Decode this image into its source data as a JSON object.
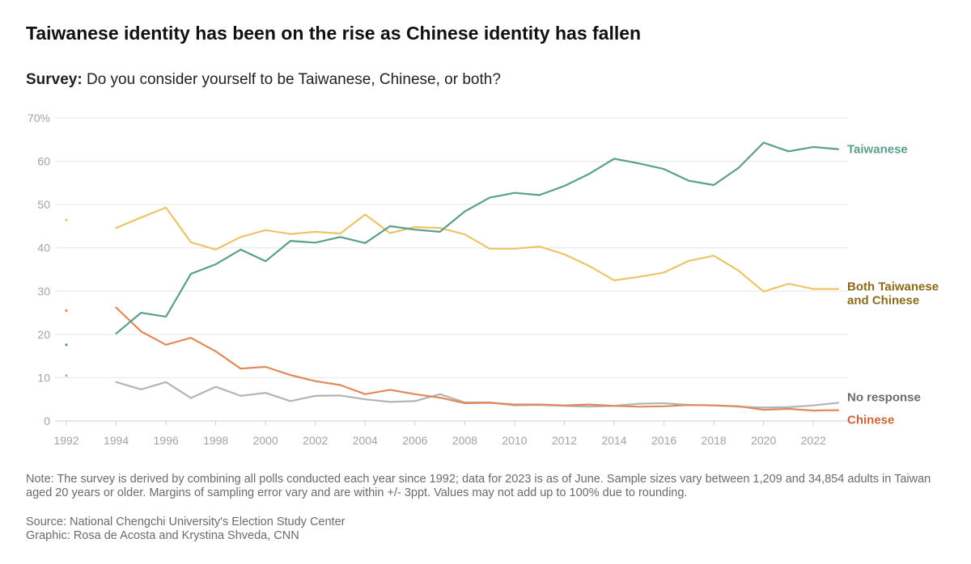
{
  "title": "Taiwanese identity has been on the rise as Chinese identity has fallen",
  "subtitle": {
    "label": "Survey:",
    "text": "Do you consider yourself to be Taiwanese, Chinese, or both?"
  },
  "note": "Note: The survey is derived by combining all polls conducted each year since 1992; data for 2023 is as of June. Sample sizes vary between 1,209 and 34,854 adults in Taiwan aged 20 years or older. Margins of sampling error vary and are within +/- 3ppt. Values may not add up to 100% due to rounding.",
  "source": "Source: National Chengchi University's Election Study Center",
  "credit": "Graphic: Rosa de Acosta and Krystina Shveda, CNN",
  "colors": {
    "taiwanese": "#5a9e8c",
    "both": "#ecc46a",
    "both_label": "#8c6a1a",
    "chinese": "#e08a5c",
    "chinese_label": "#c9653a",
    "no_response": "#b4b4b4",
    "no_response_label": "#6b6b6b",
    "grid": "#e6e6e6",
    "tick": "#a3a3a3"
  },
  "chart_data": {
    "type": "line",
    "xlim": [
      1992,
      2023
    ],
    "ylim": [
      0,
      70
    ],
    "yticks": [
      0,
      10,
      20,
      30,
      40,
      50,
      60,
      70
    ],
    "ytick_labels": [
      "0",
      "10",
      "20",
      "30",
      "40",
      "50",
      "60",
      "70%"
    ],
    "xticks": [
      1992,
      1994,
      1996,
      1998,
      2000,
      2002,
      2004,
      2006,
      2008,
      2010,
      2012,
      2014,
      2016,
      2018,
      2020,
      2022
    ],
    "xtick_labels": [
      "1992",
      "1994",
      "1996",
      "1998",
      "2000",
      "2002",
      "2004",
      "2006",
      "2008",
      "2010",
      "2012",
      "2014",
      "2016",
      "2018",
      "2020",
      "2022"
    ],
    "x": [
      1994,
      1995,
      1996,
      1997,
      1998,
      1999,
      2000,
      2001,
      2002,
      2003,
      2004,
      2005,
      2006,
      2007,
      2008,
      2009,
      2010,
      2011,
      2012,
      2013,
      2014,
      2015,
      2016,
      2017,
      2018,
      2019,
      2020,
      2021,
      2022,
      2023
    ],
    "series": [
      {
        "key": "taiwanese",
        "name": "Taiwanese",
        "point_1992": 17.6,
        "values": [
          20.2,
          25.0,
          24.1,
          34.0,
          36.2,
          39.6,
          36.9,
          41.6,
          41.2,
          42.5,
          41.1,
          45.0,
          44.2,
          43.7,
          48.4,
          51.6,
          52.7,
          52.2,
          54.3,
          57.1,
          60.6,
          59.5,
          58.2,
          55.5,
          54.5,
          58.5,
          64.3,
          62.3,
          63.3,
          62.8
        ]
      },
      {
        "key": "both",
        "name": "Both Taiwanese and Chinese",
        "label_lines": [
          "Both Taiwanese",
          "and Chinese"
        ],
        "point_1992": 46.4,
        "values": [
          44.6,
          47.0,
          49.3,
          41.3,
          39.6,
          42.5,
          44.1,
          43.2,
          43.7,
          43.3,
          47.7,
          43.4,
          44.8,
          44.6,
          43.1,
          39.8,
          39.8,
          40.3,
          38.5,
          35.8,
          32.5,
          33.3,
          34.3,
          37.0,
          38.2,
          34.7,
          29.9,
          31.7,
          30.5,
          30.5
        ]
      },
      {
        "key": "chinese",
        "name": "Chinese",
        "point_1992": 25.5,
        "values": [
          26.2,
          20.7,
          17.6,
          19.2,
          16.1,
          12.1,
          12.5,
          10.6,
          9.2,
          8.3,
          6.2,
          7.2,
          6.2,
          5.4,
          4.1,
          4.2,
          3.8,
          3.8,
          3.6,
          3.8,
          3.5,
          3.3,
          3.4,
          3.7,
          3.6,
          3.4,
          2.6,
          2.8,
          2.4,
          2.5
        ]
      },
      {
        "key": "no_response",
        "name": "No response",
        "point_1992": 10.5,
        "values": [
          9.0,
          7.3,
          9.0,
          5.3,
          7.9,
          5.8,
          6.5,
          4.6,
          5.8,
          5.9,
          5.0,
          4.4,
          4.6,
          6.2,
          4.3,
          4.3,
          3.6,
          3.7,
          3.5,
          3.3,
          3.5,
          4.0,
          4.1,
          3.7,
          3.6,
          3.3,
          3.1,
          3.2,
          3.6,
          4.2
        ]
      }
    ]
  }
}
